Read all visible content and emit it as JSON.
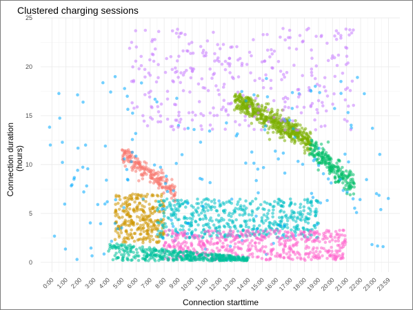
{
  "chart_data": {
    "type": "scatter",
    "title": "Clustered charging sessions",
    "xlabel": "Connection starttime",
    "ylabel_lines": [
      "Connection duration",
      "(hours)"
    ],
    "xlim": [
      -0.8,
      24.8
    ],
    "ylim": [
      -1,
      25
    ],
    "yticks": [
      0,
      5,
      10,
      15,
      20,
      25
    ],
    "xtick_values": [
      0,
      1,
      2,
      3,
      4,
      5,
      6,
      7,
      8,
      9,
      10,
      11,
      12,
      13,
      14,
      15,
      16,
      17,
      18,
      19,
      20,
      21,
      22,
      23,
      23.983
    ],
    "xtick_labels": [
      "0:00",
      "1:00",
      "2:00",
      "3:00",
      "4:00",
      "5:00",
      "6:00",
      "7:00",
      "8:00",
      "9:00",
      "10:00",
      "11:00",
      "12:00",
      "13:00",
      "14:00",
      "15:00",
      "16:00",
      "17:00",
      "18:00",
      "19:00",
      "20:00",
      "21:00",
      "22:00",
      "23:00",
      "23:59"
    ],
    "grid": true,
    "legend": "none",
    "clusters": [
      {
        "color": "#F8766D",
        "x_range": [
          5.0,
          8.8
        ],
        "y_range": [
          6.2,
          11.5
        ],
        "shape": "descending band",
        "approx_points": 180
      },
      {
        "color": "#CD9600",
        "x_range": [
          4.5,
          8.0
        ],
        "y_range": [
          2.0,
          7.0
        ],
        "shape": "block",
        "approx_points": 280
      },
      {
        "color": "#7CAE00",
        "x_range": [
          13.0,
          18.5
        ],
        "y_range": [
          11.0,
          17.2
        ],
        "shape": "descending band",
        "approx_points": 500
      },
      {
        "color": "#00BE67",
        "x_range": [
          18.3,
          21.6
        ],
        "y_range": [
          6.5,
          12.5
        ],
        "shape": "descending band",
        "approx_points": 200
      },
      {
        "color": "#00BFC4",
        "x_range": [
          7.5,
          19.0
        ],
        "y_range": [
          2.5,
          6.5
        ],
        "shape": "block",
        "approx_points": 500
      },
      {
        "color": "#00A9FF",
        "x_range": [
          -0.2,
          23.98
        ],
        "y_range": [
          0.0,
          19.0
        ],
        "shape": "scattered",
        "approx_points": 180
      },
      {
        "color": "#C77CFF",
        "x_range": [
          5.5,
          21.5
        ],
        "y_range": [
          13.5,
          24.0
        ],
        "shape": "scattered",
        "approx_points": 330
      },
      {
        "color": "#FF61CC",
        "x_range": [
          8.0,
          21.0
        ],
        "y_range": [
          0.2,
          3.3
        ],
        "shape": "block",
        "approx_points": 500
      },
      {
        "color": "#00C19A",
        "x_range": [
          4.0,
          14.0
        ],
        "y_range": [
          0.0,
          2.0
        ],
        "shape": "wedge",
        "approx_points": 420
      }
    ]
  }
}
